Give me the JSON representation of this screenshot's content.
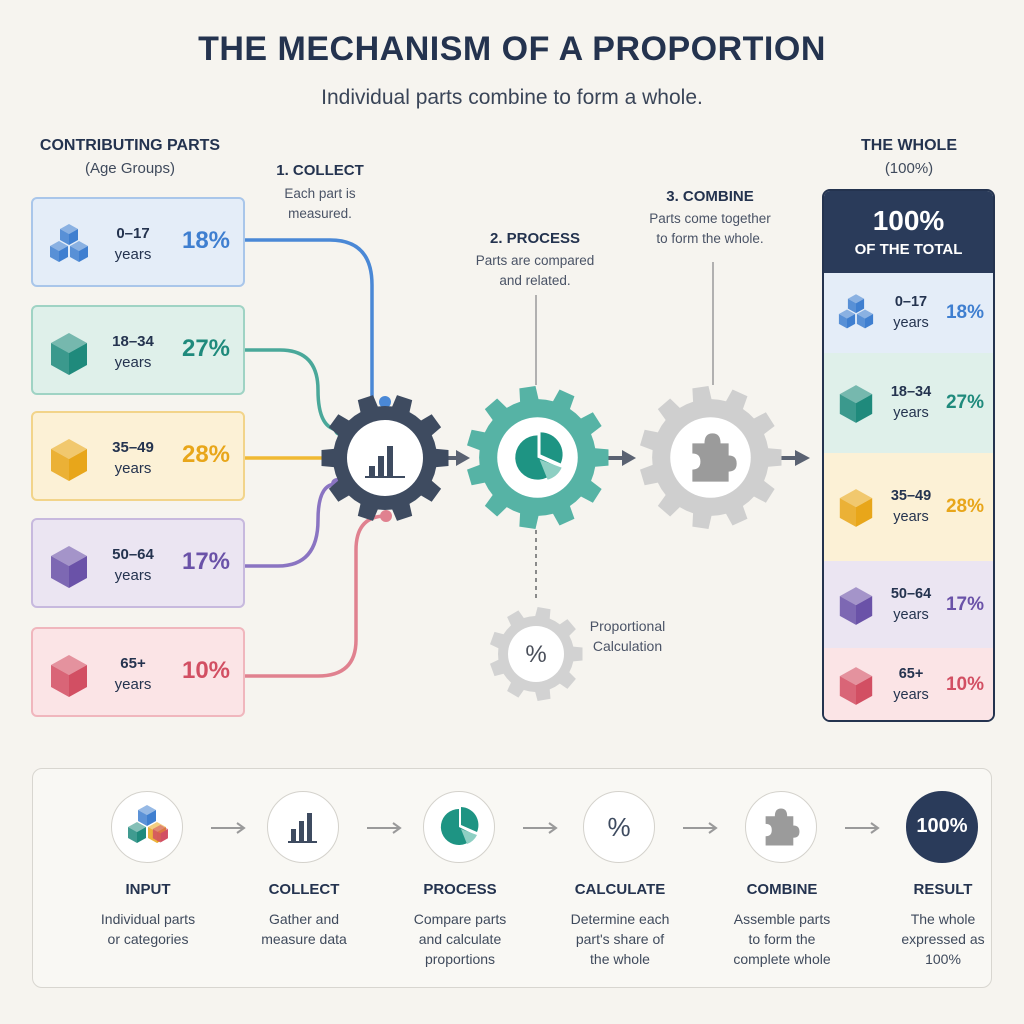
{
  "title": "THE MECHANISM OF A PROPORTION",
  "subtitle": "Individual parts combine to form a whole.",
  "left_header": {
    "title": "CONTRIBUTING PARTS",
    "sub": "(Age Groups)"
  },
  "right_header": {
    "title": "THE WHOLE",
    "sub": "(100%)"
  },
  "parts": [
    {
      "range": "0–17",
      "unit": "years",
      "pct": "18%",
      "value": 18,
      "color": "#3f7fd0",
      "fill": "#e4edf8",
      "border": "#a9c6ea",
      "icon": "stacked-cubes-icon"
    },
    {
      "range": "18–34",
      "unit": "years",
      "pct": "27%",
      "value": 27,
      "color": "#1f8a7c",
      "fill": "#dff0ea",
      "border": "#9fd3c4",
      "icon": "cube-icon"
    },
    {
      "range": "35–49",
      "unit": "years",
      "pct": "28%",
      "value": 28,
      "color": "#e8a61a",
      "fill": "#fcf1d6",
      "border": "#f2d48a",
      "icon": "cube-icon"
    },
    {
      "range": "50–64",
      "unit": "years",
      "pct": "17%",
      "value": 17,
      "color": "#6a52a8",
      "fill": "#ebe5f2",
      "border": "#c7b9de",
      "icon": "cube-icon"
    },
    {
      "range": "65+",
      "unit": "years",
      "pct": "10%",
      "value": 10,
      "color": "#d24f63",
      "fill": "#fbe4e6",
      "border": "#f0b6bd",
      "icon": "cube-icon"
    }
  ],
  "steps": {
    "collect": {
      "title": "1. COLLECT",
      "desc1": "Each part is",
      "desc2": "measured."
    },
    "process": {
      "title": "2. PROCESS",
      "desc1": "Parts are compared",
      "desc2": "and related."
    },
    "combine": {
      "title": "3. COMBINE",
      "desc1": "Parts come together",
      "desc2": "to form the whole."
    },
    "calc": {
      "line1": "Proportional",
      "line2": "Calculation",
      "symbol": "%"
    }
  },
  "whole": {
    "big": "100%",
    "small": "OF THE TOTAL"
  },
  "flow": [
    {
      "title": "INPUT",
      "desc": [
        "Individual parts",
        "or categories"
      ],
      "icon": "cubes-icon"
    },
    {
      "title": "COLLECT",
      "desc": [
        "Gather and",
        "measure data"
      ],
      "icon": "bar-chart-icon"
    },
    {
      "title": "PROCESS",
      "desc": [
        "Compare parts",
        "and calculate",
        "proportions"
      ],
      "icon": "pie-chart-icon"
    },
    {
      "title": "CALCULATE",
      "desc": [
        "Determine each",
        "part's share of",
        "the whole"
      ],
      "icon": "percent-icon",
      "symbol": "%"
    },
    {
      "title": "COMBINE",
      "desc": [
        "Assemble parts",
        "to form the",
        "complete whole"
      ],
      "icon": "puzzle-icon"
    },
    {
      "title": "RESULT",
      "desc": [
        "The whole",
        "expressed as",
        "100%"
      ],
      "icon": "result-badge",
      "symbol": "100%"
    }
  ]
}
